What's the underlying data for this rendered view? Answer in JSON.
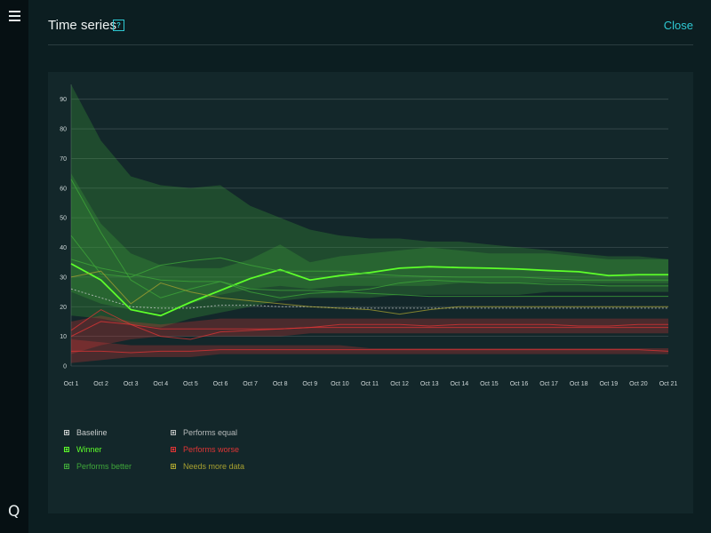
{
  "header": {
    "title": "Time series",
    "help_label": "?",
    "close_label": "Close"
  },
  "sidebar": {
    "logo_text": "Q"
  },
  "colors": {
    "baseline": "#c8cccc",
    "winner": "#5dff2a",
    "better": "#3fa83a",
    "equal": "#b8bcbc",
    "worse": "#e03535",
    "more_data": "#a7a030",
    "grid": "#3a4b4e"
  },
  "legend": [
    {
      "key": "baseline",
      "label": "Baseline"
    },
    {
      "key": "winner",
      "label": "Winner"
    },
    {
      "key": "better",
      "label": "Performs better"
    },
    {
      "key": "equal",
      "label": "Performs equal"
    },
    {
      "key": "worse",
      "label": "Performs worse"
    },
    {
      "key": "more_data",
      "label": "Needs more data"
    }
  ],
  "chart_data": {
    "type": "line",
    "categories": [
      "Oct 1",
      "Oct 2",
      "Oct 3",
      "Oct 4",
      "Oct 5",
      "Oct 6",
      "Oct 7",
      "Oct 8",
      "Oct 9",
      "Oct 10",
      "Oct 11",
      "Oct 12",
      "Oct 13",
      "Oct 14",
      "Oct 15",
      "Oct 16",
      "Oct 17",
      "Oct 18",
      "Oct 19",
      "Oct 20",
      "Oct 21"
    ],
    "ylim": [
      0,
      95
    ],
    "yticks": [
      0,
      10,
      20,
      30,
      40,
      50,
      60,
      70,
      80,
      90
    ],
    "grid": true,
    "legend_position": "bottom-left",
    "bands": [
      {
        "group": "better",
        "upper": [
          95,
          76,
          64,
          61,
          60,
          61,
          54,
          50,
          46,
          44,
          43,
          43,
          42,
          42,
          41,
          40,
          39,
          38,
          37,
          37,
          36
        ],
        "lower": [
          17,
          16,
          14,
          13,
          16,
          18,
          20,
          22,
          23,
          23,
          23,
          24,
          24,
          24,
          24,
          24,
          25,
          25,
          25,
          25,
          25
        ]
      },
      {
        "group": "better",
        "upper": [
          65,
          48,
          38,
          34,
          33,
          33,
          36,
          41,
          35,
          37,
          38,
          39,
          40,
          39,
          38,
          38,
          38,
          37,
          36,
          36,
          36
        ],
        "lower": [
          25,
          21,
          19,
          18,
          21,
          24,
          26,
          27,
          26,
          27,
          27,
          27,
          27,
          28,
          28,
          28,
          28,
          28,
          28,
          28,
          28
        ]
      },
      {
        "group": "worse",
        "upper": [
          15,
          17,
          15,
          14,
          15,
          16,
          16,
          16,
          16,
          16,
          16,
          16,
          16,
          16,
          16,
          16,
          16,
          16,
          16,
          16,
          16
        ],
        "lower": [
          4,
          7,
          9,
          10,
          10,
          10,
          10,
          10,
          11,
          11,
          11,
          11,
          11,
          11,
          11,
          11,
          11,
          11,
          11,
          11,
          11
        ]
      },
      {
        "group": "worse",
        "upper": [
          9,
          8,
          7,
          7,
          7,
          7,
          7,
          7,
          7,
          7,
          6,
          6,
          6,
          6,
          6,
          6,
          6,
          6,
          6,
          6,
          6
        ],
        "lower": [
          1,
          2,
          3,
          3,
          3,
          4,
          4,
          4,
          4,
          4,
          4,
          4,
          4,
          4,
          4,
          4,
          4,
          4,
          4,
          4,
          4
        ]
      }
    ],
    "series": [
      {
        "name": "Baseline",
        "group": "baseline",
        "dashed": true,
        "values": [
          26,
          23,
          20,
          19.5,
          19.5,
          20.5,
          20.5,
          20,
          20,
          19.5,
          19.5,
          19.5,
          19.5,
          19.5,
          19.5,
          19.5,
          19.5,
          19.5,
          19.5,
          19.5,
          19.5
        ]
      },
      {
        "name": "Winner",
        "group": "winner",
        "values": [
          34.5,
          29,
          19,
          17,
          21.5,
          25.5,
          29.5,
          32.5,
          29,
          30.5,
          31.5,
          33,
          33.5,
          33.2,
          33,
          32.7,
          32.2,
          31.8,
          30.5,
          30.8,
          30.8
        ]
      },
      {
        "name": "Performs better",
        "group": "better",
        "values": [
          63,
          45,
          29,
          23,
          26,
          28.5,
          25,
          23,
          24.5,
          25,
          26,
          28,
          29,
          28.5,
          28,
          28,
          27.5,
          27.5,
          27,
          27,
          27
        ]
      },
      {
        "name": "Performs better",
        "group": "better",
        "values": [
          44,
          31,
          30,
          34,
          35.5,
          36.5,
          34,
          32,
          32,
          32,
          31,
          30.5,
          30.2,
          30,
          30,
          30,
          29.5,
          29,
          29,
          29,
          29
        ]
      },
      {
        "name": "Performs better",
        "group": "better",
        "values": [
          36,
          33,
          31,
          29,
          28.5,
          28.5,
          26,
          25.5,
          25.5,
          25,
          24.5,
          24,
          23.5,
          23.5,
          23.5,
          23.5,
          23.5,
          23.5,
          23.5,
          23.5,
          23.5
        ]
      },
      {
        "name": "Needs more data",
        "group": "more_data",
        "values": [
          30,
          32,
          21,
          28,
          25,
          23,
          22,
          21,
          20,
          19.5,
          19,
          17.5,
          19,
          20,
          20,
          20,
          20,
          20,
          20,
          20,
          20
        ]
      },
      {
        "name": "Performs worse",
        "group": "worse",
        "values": [
          10,
          15,
          14,
          10,
          9,
          11.5,
          12,
          12.5,
          13,
          14,
          14,
          14,
          13.5,
          14,
          14,
          14,
          14,
          13.5,
          13.5,
          14,
          14
        ]
      },
      {
        "name": "Performs worse",
        "group": "worse",
        "values": [
          12,
          19,
          14,
          12.5,
          12.5,
          12.5,
          12.5,
          12.5,
          13,
          13,
          13,
          13,
          13,
          13,
          13,
          13,
          13,
          13,
          13,
          13,
          13
        ]
      },
      {
        "name": "Performs worse",
        "group": "worse",
        "values": [
          5,
          5,
          4.5,
          5,
          5,
          5.5,
          5.5,
          5.5,
          5.5,
          5.5,
          5.5,
          5.5,
          5.5,
          5.5,
          5.5,
          5.5,
          5.5,
          5.5,
          5.5,
          5.5,
          5
        ]
      }
    ]
  }
}
